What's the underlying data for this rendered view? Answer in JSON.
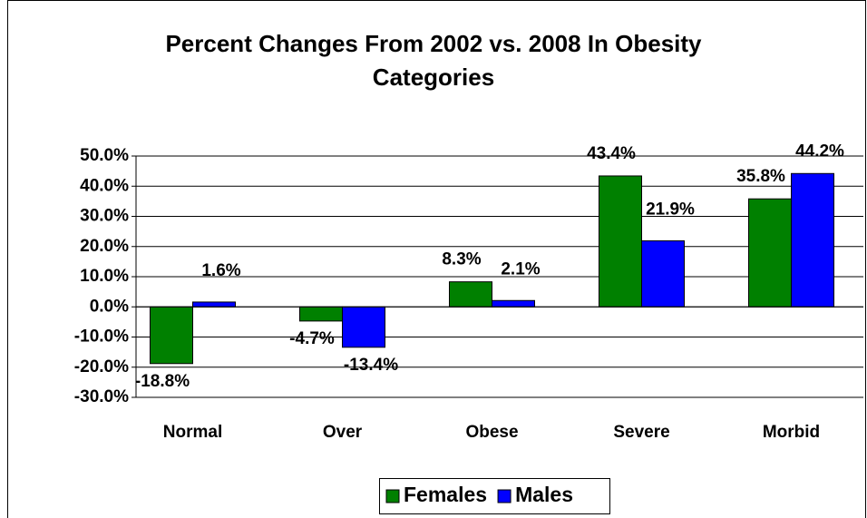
{
  "chart_data": {
    "type": "bar",
    "title": "Percent Changes From 2002 vs. 2008 In Obesity Categories",
    "categories": [
      "Normal",
      "Over",
      "Obese",
      "Severe",
      "Morbid"
    ],
    "series": [
      {
        "name": "Females",
        "color": "#008000",
        "values": [
          -18.8,
          -4.7,
          8.3,
          43.4,
          35.8
        ],
        "value_labels": [
          "-18.8%",
          "-4.7%",
          "8.3%",
          "43.4%",
          "35.8%"
        ]
      },
      {
        "name": "Males",
        "color": "#0000ff",
        "values": [
          1.6,
          -13.4,
          2.1,
          21.9,
          44.2
        ],
        "value_labels": [
          "1.6%",
          "-13.4%",
          "2.1%",
          "21.9%",
          "44.2%"
        ]
      }
    ],
    "ylim": [
      -30,
      50
    ],
    "yticks": [
      {
        "value": -30,
        "label": "-30.0%"
      },
      {
        "value": -20,
        "label": "-20.0%"
      },
      {
        "value": -10,
        "label": "-10.0%"
      },
      {
        "value": 0,
        "label": "0.0%"
      },
      {
        "value": 10,
        "label": "10.0%"
      },
      {
        "value": 20,
        "label": "20.0%"
      },
      {
        "value": 30,
        "label": "30.0%"
      },
      {
        "value": 40,
        "label": "40.0%"
      },
      {
        "value": 50,
        "label": "50.0%"
      }
    ],
    "grid": true,
    "legend": "bottom"
  }
}
